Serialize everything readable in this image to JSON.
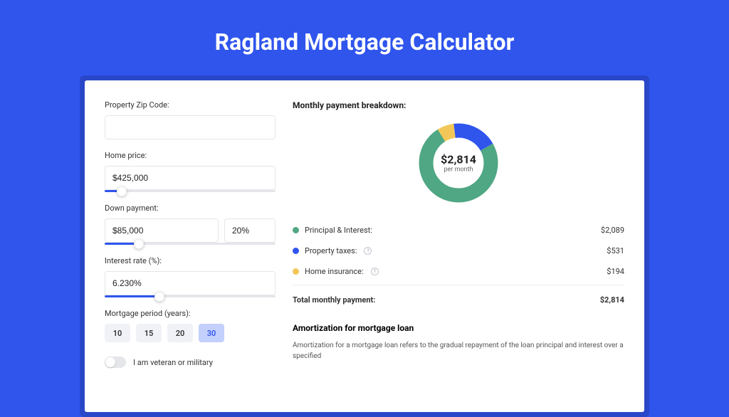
{
  "colors": {
    "bg": "#2f55ed",
    "shadow": "#2947c8",
    "principal": "#4fa783",
    "taxes": "#2f55ed",
    "insurance": "#f3c757",
    "input_border": "#e4e6ea",
    "period_active_bg": "#c3d0fb"
  },
  "title": "Ragland Mortgage Calculator",
  "form": {
    "zip_label": "Property Zip Code:",
    "zip_value": "",
    "home_price_label": "Home price:",
    "home_price_value": "$425,000",
    "home_price_slider_pct": 10,
    "down_payment_label": "Down payment:",
    "down_payment_value": "$85,000",
    "down_payment_pct": "20%",
    "down_payment_slider_pct": 20,
    "interest_label": "Interest rate (%):",
    "interest_value": "6.230%",
    "interest_slider_pct": 32,
    "period_label": "Mortgage period (years):",
    "period_options": [
      "10",
      "15",
      "20",
      "30"
    ],
    "period_selected": "30",
    "veteran_label": "I am veteran or military"
  },
  "breakdown": {
    "title": "Monthly payment breakdown:",
    "center_amount": "$2,814",
    "center_sub": "per month",
    "slices": {
      "principal_pct": 74.2,
      "taxes_pct": 18.9,
      "insurance_pct": 6.9
    },
    "rows": [
      {
        "key": "principal",
        "label": "Principal & Interest:",
        "value": "$2,089",
        "color": "#4fa783",
        "info": false
      },
      {
        "key": "taxes",
        "label": "Property taxes:",
        "value": "$531",
        "color": "#2f55ed",
        "info": true
      },
      {
        "key": "insurance",
        "label": "Home insurance:",
        "value": "$194",
        "color": "#f3c757",
        "info": true
      }
    ],
    "total_label": "Total monthly payment:",
    "total_value": "$2,814"
  },
  "amort": {
    "title": "Amortization for mortgage loan",
    "text": "Amortization for a mortgage loan refers to the gradual repayment of the loan principal and interest over a specified"
  }
}
